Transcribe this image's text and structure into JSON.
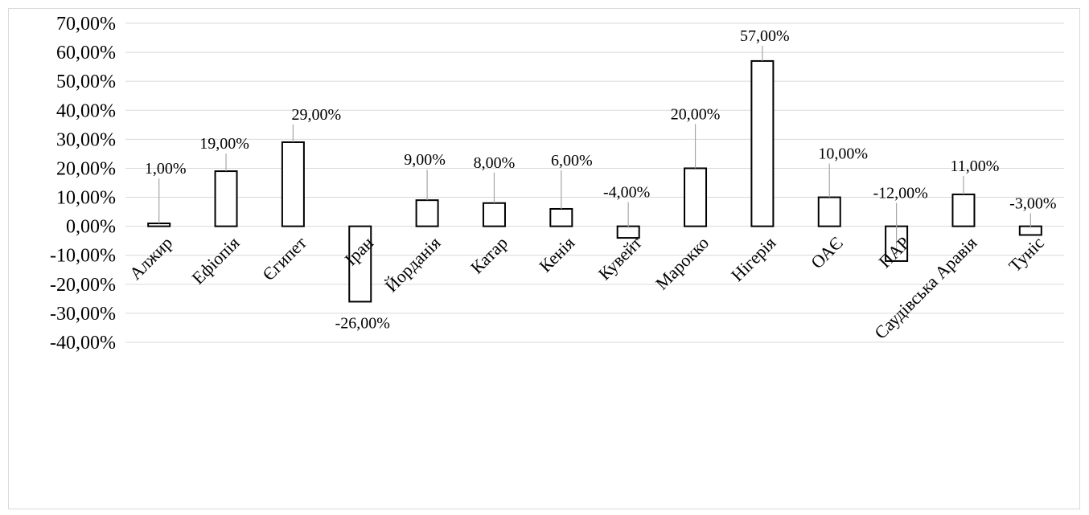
{
  "chart_data": {
    "type": "bar",
    "categories": [
      "Алжир",
      "Ефіопія",
      "Єгипет",
      "Іран",
      "Йорданія",
      "Катар",
      "Кенія",
      "Кувейт",
      "Марокко",
      "Нігерія",
      "ОАЄ",
      "ПАР",
      "Саудівська Аравія",
      "Туніс"
    ],
    "values": [
      1,
      19,
      29,
      -26,
      9,
      8,
      6,
      -4,
      20,
      57,
      10,
      -12,
      11,
      -3
    ],
    "value_labels": [
      "1,00%",
      "19,00%",
      "29,00%",
      "-26,00%",
      "9,00%",
      "8,00%",
      "6,00%",
      "-4,00%",
      "20,00%",
      "57,00%",
      "10,00%",
      "-12,00%",
      "11,00%",
      "-3,00%"
    ],
    "y_ticks": [
      "70,00%",
      "60,00%",
      "50,00%",
      "40,00%",
      "30,00%",
      "20,00%",
      "10,00%",
      "0,00%",
      "-10,00%",
      "-20,00%",
      "-30,00%",
      "-40,00%"
    ],
    "ylim": [
      -40,
      70
    ],
    "y_unit": "%",
    "title": "",
    "xlabel": "",
    "ylabel": "",
    "grid": true,
    "legend": "none",
    "colors": {
      "bar_fill": "#ffffff",
      "bar_stroke": "#000000",
      "grid": "#d9d9d9",
      "leader": "#a6a6a6"
    }
  }
}
